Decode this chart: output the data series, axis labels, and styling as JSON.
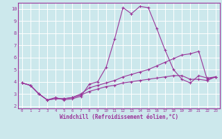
{
  "xlabel": "Windchill (Refroidissement éolien,°C)",
  "background_color": "#cce8ec",
  "line_color": "#993399",
  "grid_color": "#ffffff",
  "xlim": [
    -0.5,
    23.5
  ],
  "ylim": [
    1.8,
    10.5
  ],
  "yticks": [
    2,
    3,
    4,
    5,
    6,
    7,
    8,
    9,
    10
  ],
  "xticks": [
    0,
    1,
    2,
    3,
    4,
    5,
    6,
    7,
    8,
    9,
    10,
    11,
    12,
    13,
    14,
    15,
    16,
    17,
    18,
    19,
    20,
    21,
    22,
    23
  ],
  "lines": [
    {
      "x": [
        0,
        1,
        2,
        3,
        4,
        5,
        6,
        7,
        8,
        9,
        10,
        11,
        12,
        13,
        14,
        15,
        16,
        17,
        18,
        19,
        20,
        21,
        22,
        23
      ],
      "y": [
        3.9,
        3.7,
        3.0,
        2.5,
        2.7,
        2.5,
        2.6,
        2.8,
        3.8,
        4.0,
        5.2,
        7.5,
        10.1,
        9.6,
        10.2,
        10.1,
        8.4,
        6.6,
        5.0,
        4.2,
        3.9,
        4.5,
        4.3,
        4.4
      ]
    },
    {
      "x": [
        0,
        1,
        2,
        3,
        4,
        5,
        6,
        7,
        8,
        9,
        10,
        11,
        12,
        13,
        14,
        15,
        16,
        17,
        18,
        19,
        20,
        21,
        22,
        23
      ],
      "y": [
        3.9,
        3.7,
        3.0,
        2.5,
        2.6,
        2.6,
        2.7,
        3.0,
        3.5,
        3.7,
        3.9,
        4.1,
        4.4,
        4.6,
        4.8,
        5.0,
        5.3,
        5.6,
        5.9,
        6.2,
        6.3,
        6.5,
        4.2,
        4.4
      ]
    },
    {
      "x": [
        0,
        1,
        2,
        3,
        4,
        5,
        6,
        7,
        8,
        9,
        10,
        11,
        12,
        13,
        14,
        15,
        16,
        17,
        18,
        19,
        20,
        21,
        22,
        23
      ],
      "y": [
        3.9,
        3.7,
        3.0,
        2.5,
        2.6,
        2.6,
        2.7,
        2.9,
        3.2,
        3.4,
        3.6,
        3.7,
        3.9,
        4.0,
        4.1,
        4.2,
        4.3,
        4.4,
        4.5,
        4.5,
        4.2,
        4.2,
        4.1,
        4.4
      ]
    }
  ]
}
